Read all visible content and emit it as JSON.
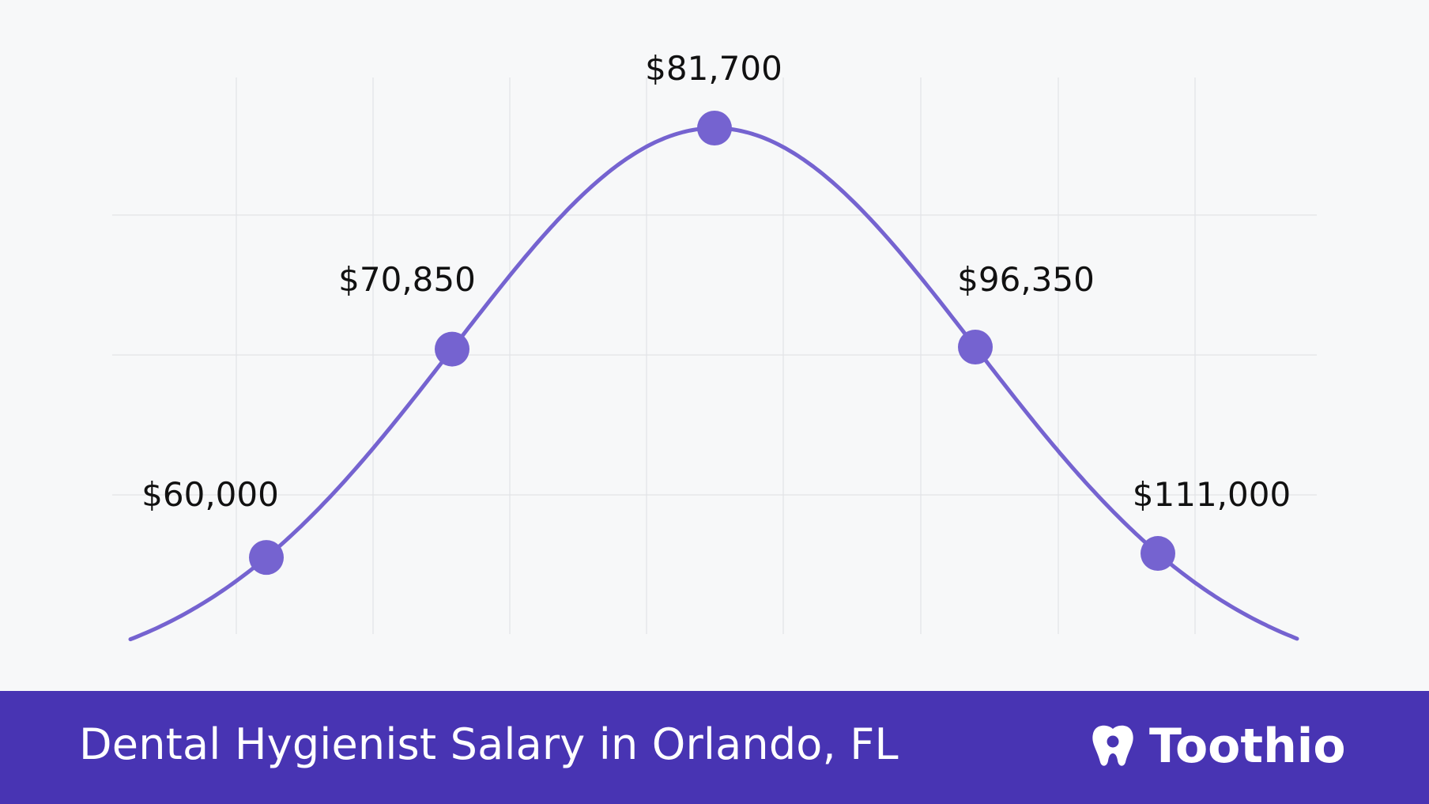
{
  "chart_data": {
    "type": "line",
    "curve": "bell",
    "title": "Dental Hygienist Salary in Orlando, FL",
    "points": [
      {
        "label": "$60,000",
        "value": 60000
      },
      {
        "label": "$70,850",
        "value": 70850
      },
      {
        "label": "$81,700",
        "value": 81700
      },
      {
        "label": "$96,350",
        "value": 96350
      },
      {
        "label": "$111,000",
        "value": 111000
      }
    ],
    "grid": true,
    "colors": {
      "line": "#7563d0",
      "point": "#7563d0",
      "grid": "#e2e3e6",
      "label": "#111111"
    }
  },
  "footer": {
    "title": "Dental Hygienist Salary in Orlando, FL",
    "brand": "Toothio",
    "brand_icon": "tooth-icon",
    "background": "#4834b3"
  }
}
